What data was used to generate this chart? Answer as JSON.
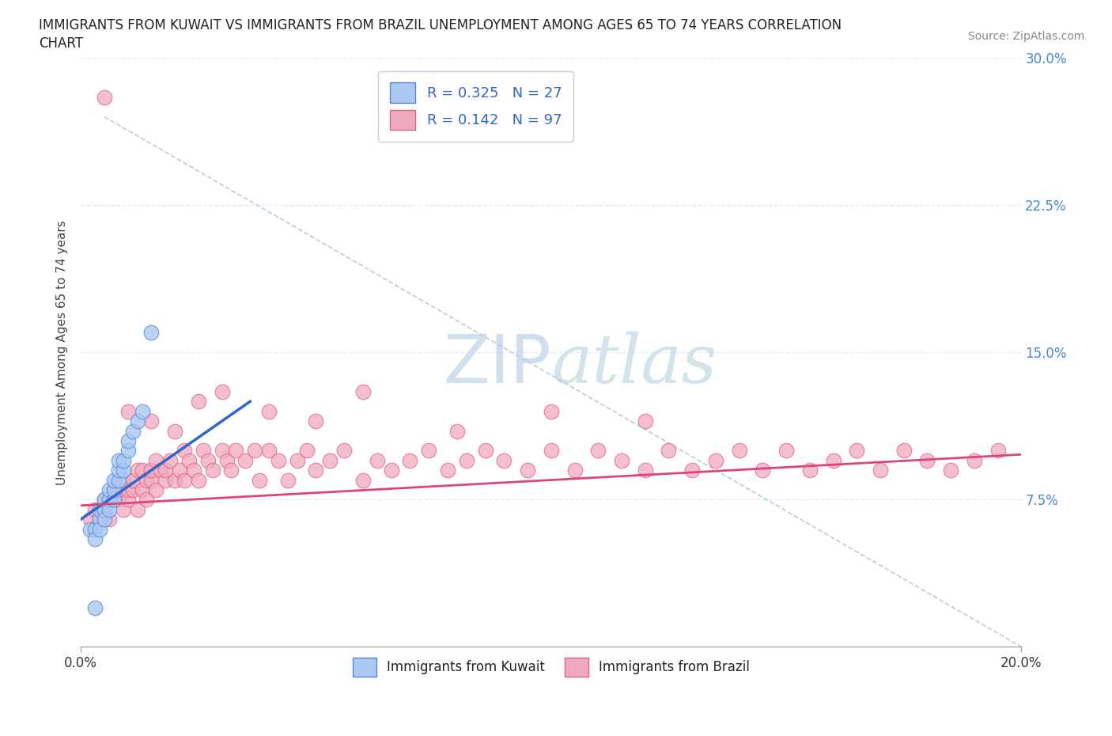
{
  "title_line1": "IMMIGRANTS FROM KUWAIT VS IMMIGRANTS FROM BRAZIL UNEMPLOYMENT AMONG AGES 65 TO 74 YEARS CORRELATION",
  "title_line2": "CHART",
  "source": "Source: ZipAtlas.com",
  "ylabel": "Unemployment Among Ages 65 to 74 years",
  "xlim": [
    0.0,
    0.2
  ],
  "ylim": [
    0.0,
    0.3
  ],
  "xtick_positions": [
    0.0,
    0.2
  ],
  "xtick_labels": [
    "0.0%",
    "20.0%"
  ],
  "ytick_positions": [
    0.0,
    0.075,
    0.15,
    0.225,
    0.3
  ],
  "ytick_labels_right": [
    "",
    "7.5%",
    "15.0%",
    "22.5%",
    "30.0%"
  ],
  "kuwait_R": 0.325,
  "kuwait_N": 27,
  "brazil_R": 0.142,
  "brazil_N": 97,
  "kuwait_color": "#aac8f0",
  "brazil_color": "#f0aac0",
  "kuwait_edge_color": "#5588dd",
  "brazil_edge_color": "#e06080",
  "kuwait_line_color": "#3366cc",
  "brazil_line_color": "#dd4477",
  "diag_line_color": "#bbccdd",
  "watermark_color": "#d0dff0",
  "background_color": "#ffffff",
  "grid_color": "#ddeeff",
  "kuwait_x": [
    0.002,
    0.003,
    0.003,
    0.004,
    0.004,
    0.004,
    0.005,
    0.005,
    0.005,
    0.006,
    0.006,
    0.006,
    0.007,
    0.007,
    0.007,
    0.008,
    0.008,
    0.008,
    0.009,
    0.009,
    0.01,
    0.01,
    0.011,
    0.012,
    0.013,
    0.015,
    0.003
  ],
  "kuwait_y": [
    0.06,
    0.06,
    0.055,
    0.065,
    0.06,
    0.07,
    0.07,
    0.075,
    0.065,
    0.075,
    0.07,
    0.08,
    0.075,
    0.08,
    0.085,
    0.085,
    0.09,
    0.095,
    0.09,
    0.095,
    0.1,
    0.105,
    0.11,
    0.115,
    0.12,
    0.16,
    0.02
  ],
  "brazil_x": [
    0.002,
    0.003,
    0.004,
    0.005,
    0.005,
    0.006,
    0.007,
    0.007,
    0.008,
    0.008,
    0.009,
    0.009,
    0.01,
    0.01,
    0.011,
    0.011,
    0.012,
    0.012,
    0.013,
    0.013,
    0.014,
    0.014,
    0.015,
    0.015,
    0.016,
    0.016,
    0.017,
    0.018,
    0.018,
    0.019,
    0.02,
    0.021,
    0.022,
    0.022,
    0.023,
    0.024,
    0.025,
    0.026,
    0.027,
    0.028,
    0.03,
    0.031,
    0.032,
    0.033,
    0.035,
    0.037,
    0.038,
    0.04,
    0.042,
    0.044,
    0.046,
    0.048,
    0.05,
    0.053,
    0.056,
    0.06,
    0.063,
    0.066,
    0.07,
    0.074,
    0.078,
    0.082,
    0.086,
    0.09,
    0.095,
    0.1,
    0.105,
    0.11,
    0.115,
    0.12,
    0.125,
    0.13,
    0.135,
    0.14,
    0.145,
    0.15,
    0.155,
    0.16,
    0.165,
    0.17,
    0.175,
    0.18,
    0.185,
    0.19,
    0.195,
    0.01,
    0.015,
    0.02,
    0.025,
    0.03,
    0.04,
    0.05,
    0.06,
    0.08,
    0.1,
    0.12,
    0.005
  ],
  "brazil_y": [
    0.065,
    0.07,
    0.065,
    0.075,
    0.07,
    0.065,
    0.075,
    0.08,
    0.075,
    0.08,
    0.07,
    0.085,
    0.075,
    0.08,
    0.08,
    0.085,
    0.07,
    0.09,
    0.08,
    0.09,
    0.085,
    0.075,
    0.085,
    0.09,
    0.08,
    0.095,
    0.09,
    0.085,
    0.09,
    0.095,
    0.085,
    0.09,
    0.1,
    0.085,
    0.095,
    0.09,
    0.085,
    0.1,
    0.095,
    0.09,
    0.1,
    0.095,
    0.09,
    0.1,
    0.095,
    0.1,
    0.085,
    0.1,
    0.095,
    0.085,
    0.095,
    0.1,
    0.09,
    0.095,
    0.1,
    0.085,
    0.095,
    0.09,
    0.095,
    0.1,
    0.09,
    0.095,
    0.1,
    0.095,
    0.09,
    0.1,
    0.09,
    0.1,
    0.095,
    0.09,
    0.1,
    0.09,
    0.095,
    0.1,
    0.09,
    0.1,
    0.09,
    0.095,
    0.1,
    0.09,
    0.1,
    0.095,
    0.09,
    0.095,
    0.1,
    0.12,
    0.115,
    0.11,
    0.125,
    0.13,
    0.12,
    0.115,
    0.13,
    0.11,
    0.12,
    0.115,
    0.28
  ],
  "kuwait_line_x": [
    0.0,
    0.036
  ],
  "kuwait_line_y": [
    0.065,
    0.125
  ],
  "brazil_line_x": [
    0.0,
    0.2
  ],
  "brazil_line_y": [
    0.072,
    0.098
  ],
  "diag_line_x": [
    0.005,
    0.2
  ],
  "diag_line_y": [
    0.27,
    0.0
  ]
}
